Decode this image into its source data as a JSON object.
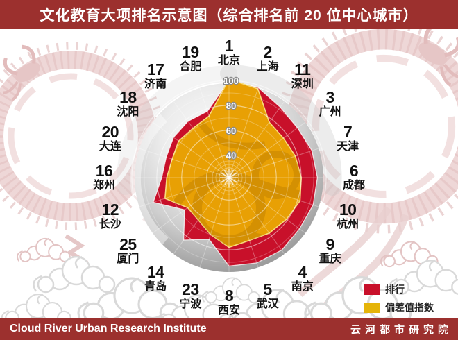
{
  "header": {
    "title": "文化教育大项排名示意图（综合排名前 20 位中心城市）"
  },
  "footer": {
    "left": "Cloud River Urban Research Institute",
    "right": "云河都市研究院"
  },
  "legend": {
    "items": [
      {
        "label": "排行",
        "color": "#c8102a"
      },
      {
        "label": "偏差值指数",
        "color": "#e5b409"
      }
    ]
  },
  "colors": {
    "bar_red": "#9c302e",
    "chart_red": "#c8102a",
    "chart_gold": "#e8a004",
    "gold_edge": "#f7dc7c",
    "sphere_dark": "#8c8c8c",
    "dragon_pink": "#ecd4d4",
    "cloud_grey": "#d9d9d9",
    "label_black": "#111111"
  },
  "chart_data": {
    "type": "radar",
    "title": "文化教育大项排名示意图（综合排名前 20 位中心城市）",
    "subtitle_note": "20 spokes, clockwise from top; each city shown with its comprehensive rank number",
    "categories": [
      "北京",
      "上海",
      "深圳",
      "广州",
      "天津",
      "成都",
      "杭州",
      "重庆",
      "南京",
      "武汉",
      "西安",
      "宁波",
      "青岛",
      "厦门",
      "长沙",
      "郑州",
      "大连",
      "沈阳",
      "济南",
      "合肥"
    ],
    "rank_labels": [
      "1",
      "2",
      "11",
      "3",
      "7",
      "6",
      "10",
      "9",
      "4",
      "5",
      "8",
      "23",
      "14",
      "25",
      "12",
      "16",
      "20",
      "18",
      "17",
      "19"
    ],
    "series": [
      {
        "name": "排行",
        "color": "#c8102a",
        "values": [
          100,
          98,
          92,
          90,
          92,
          93,
          93,
          92,
          94,
          94,
          93,
          74,
          84,
          66,
          86,
          76,
          75,
          77,
          78,
          78
        ]
      },
      {
        "name": "偏差值指数",
        "color": "#e8a004",
        "values": [
          101,
          97,
          77,
          76,
          78,
          80,
          82,
          79,
          77,
          75,
          78,
          70,
          64,
          63,
          76,
          72,
          70,
          72,
          71,
          74
        ]
      }
    ],
    "radial_ticks": [
      40,
      60,
      80,
      100
    ],
    "axis_range": [
      20,
      100
    ],
    "start_angle": "top",
    "direction": "clockwise",
    "grid": true,
    "legend_position": "bottom-right"
  },
  "geometry_note": "values are deviation-index estimates read from the plot (center≈20, outer ring=100)"
}
